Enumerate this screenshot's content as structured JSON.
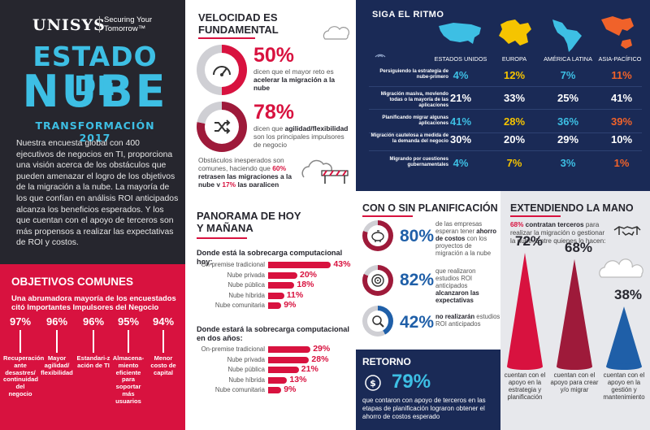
{
  "brand": {
    "logo": "UNISYS",
    "tagline_1": "Securing Your",
    "tagline_2": "Tomorrow™"
  },
  "header": {
    "title_line1": "ESTADO DE",
    "title_line2": "NUBE",
    "subtitle": "TRANSFORMACIÓN 2017"
  },
  "intro": {
    "text": "Nuestra encuesta global con 400 ejecutivos de negocios en TI, proporciona una visión acerca de los obstáculos que pueden amenazar el logro de los objetivos de la migración a la nube. La mayoría de los que confían en análisis ROI anticipados alcanza los beneficios esperados. Y los que cuentan con el apoyo de terceros son más propensos a realizar las expectativas de ROI y costos."
  },
  "objetivos": {
    "title": "OBJETIVOS COMUNES",
    "subtitle": "Una abrumadora mayoría de los encuestados citó Importantes Impulsores del Negocio",
    "items": [
      {
        "pct": "97%",
        "label": "Recuperación ante desastres/ continuidad del negocio"
      },
      {
        "pct": "96%",
        "label": "Mayor agilidad/ flexibilidad"
      },
      {
        "pct": "96%",
        "label": "Estandari-z ación de TI"
      },
      {
        "pct": "95%",
        "label": "Almacena-miento eficiente para soportar más usuarios"
      },
      {
        "pct": "94%",
        "label": "Menor costo de capital"
      }
    ]
  },
  "velocidad": {
    "title_1": "VELOCIDAD ES",
    "title_2": "FUNDAMENTAL",
    "stat1": {
      "pct": "50%",
      "value": 50,
      "text_a": "dicen que el mayor reto es",
      "text_b": "acelerar la migración a la nube"
    },
    "stat2": {
      "pct": "78%",
      "value": 78,
      "text_a": "dicen que",
      "text_b": "agilidad/flexibilidad",
      "text_c": "son los principales impulsores de negocio"
    },
    "note_a": "Obstáculos inesperados son comunes, haciendo que",
    "note_b": "60%",
    "note_c": "retrasen las migraciones a la nube",
    "note_d": "y",
    "note_e": "17%",
    "note_f": "las paralicen"
  },
  "siga": {
    "title": "SIGA EL RITMO",
    "regions": [
      "ESTADOS UNIDOS",
      "EUROPA",
      "AMÉRICA LATINA",
      "ASIA-PACÍFICO"
    ],
    "region_colors": [
      "#3dbfe4",
      "#f5c400",
      "#3dbfe4",
      "#f0622a"
    ],
    "rows": [
      {
        "label": "Persiguiendo la estrategia de nube-primero",
        "values": [
          "4%",
          "12%",
          "7%",
          "11%"
        ],
        "colors": [
          "#3dbfe4",
          "#f5c400",
          "#3dbfe4",
          "#f0622a"
        ]
      },
      {
        "label": "Migración masiva, moviendo todas o la mayoría de las aplicaciones",
        "values": [
          "21%",
          "33%",
          "25%",
          "41%"
        ],
        "colors": [
          "#ffffff",
          "#ffffff",
          "#ffffff",
          "#ffffff"
        ]
      },
      {
        "label": "Planificando migrar algunas aplicaciones",
        "values": [
          "41%",
          "28%",
          "36%",
          "39%"
        ],
        "colors": [
          "#3dbfe4",
          "#f5c400",
          "#3dbfe4",
          "#f0622a"
        ]
      },
      {
        "label": "Migración cautelosa a medida de la demanda del negocio",
        "values": [
          "30%",
          "20%",
          "29%",
          "10%"
        ],
        "colors": [
          "#ffffff",
          "#ffffff",
          "#ffffff",
          "#ffffff"
        ]
      },
      {
        "label": "Migrando por cuestiones gubernamentales",
        "values": [
          "4%",
          "7%",
          "3%",
          "1%"
        ],
        "colors": [
          "#3dbfe4",
          "#f5c400",
          "#3dbfe4",
          "#f0622a"
        ]
      }
    ]
  },
  "panorama": {
    "title_1": "PANORAMA DE HOY",
    "title_2": "Y MAÑANA",
    "group1_title": "Donde está la sobrecarga computacional hoy:",
    "group1": [
      {
        "label": "On-premise tradicional",
        "value": 43,
        "text": "43%"
      },
      {
        "label": "Nube privada",
        "value": 20,
        "text": "20%"
      },
      {
        "label": "Nube pública",
        "value": 18,
        "text": "18%"
      },
      {
        "label": "Nube híbrida",
        "value": 11,
        "text": "11%"
      },
      {
        "label": "Nube comunitaria",
        "value": 9,
        "text": "9%"
      }
    ],
    "group2_title": "Donde estará la sobrecarga computacional en dos años:",
    "group2": [
      {
        "label": "On-premise tradicional",
        "value": 29,
        "text": "29%"
      },
      {
        "label": "Nube privada",
        "value": 28,
        "text": "28%"
      },
      {
        "label": "Nube pública",
        "value": 21,
        "text": "21%"
      },
      {
        "label": "Nube híbrida",
        "value": 13,
        "text": "13%"
      },
      {
        "label": "Nube comunitaria",
        "value": 9,
        "text": "9%"
      }
    ]
  },
  "planificacion": {
    "title": "CON O SIN PLANIFICACIÓN",
    "items": [
      {
        "pct": "80%",
        "value": 80,
        "text_a": "de las empresas esperan tener",
        "text_b": "ahorro de costos",
        "text_c": "con los proyectos de migración a la nube"
      },
      {
        "pct": "82%",
        "value": 82,
        "text_a": "que realizaron estudios ROI anticipados",
        "text_b": "alcanzaron las expectativas",
        "text_c": ""
      },
      {
        "pct": "42%",
        "value": 42,
        "text_a": "",
        "text_b": "no realizarán",
        "text_c": "estudios ROI anticipados"
      }
    ]
  },
  "retorno": {
    "title": "RETORNO",
    "pct": "79%",
    "text": "que contaron con apoyo de terceros en las etapas de planificación lograron obtener el ahorro de costos esperado"
  },
  "extendiendo": {
    "title": "EXTENDIENDO LA MANO",
    "lead_pct": "68%",
    "lead_bold": "contratan terceros",
    "lead_text": "para realizar la migración o gestionar la nube. Entre quienes lo hacen:",
    "cones": [
      {
        "pct": "72%",
        "value": 72,
        "label": "cuentan con el apoyo en la estrategia y planificación",
        "color": "#d8123f"
      },
      {
        "pct": "68%",
        "value": 68,
        "label": "cuentan con el apoyo para crear y/o migrar",
        "color": "#9e1a3a"
      },
      {
        "pct": "38%",
        "value": 38,
        "label": "cuentan con el apoyo en la gestión y mantenimiento",
        "color": "#1f5fa8"
      }
    ]
  }
}
